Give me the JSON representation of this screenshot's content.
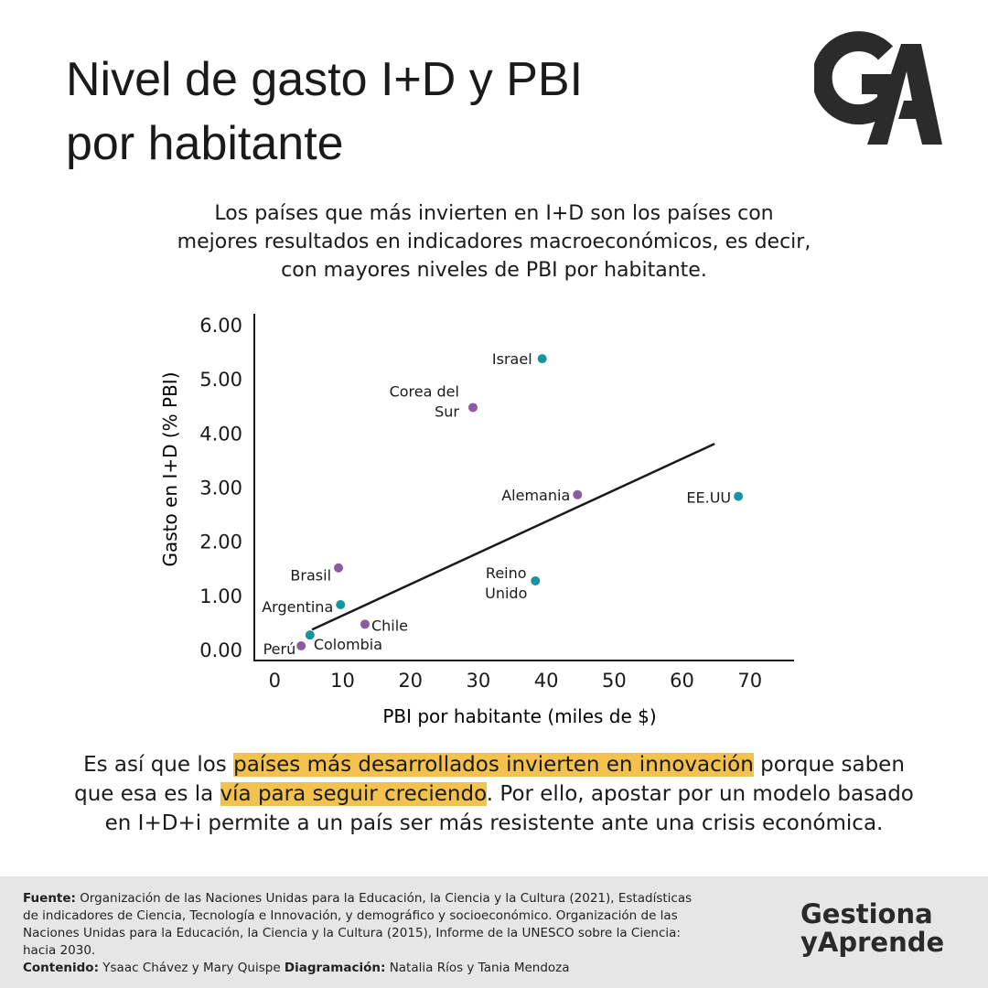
{
  "header": {
    "title_lines": [
      "Nivel de gasto I+D y PBI",
      "por habitante"
    ],
    "subtitle_lines": [
      "Los países que más invierten en I+D son los países con",
      "mejores resultados en indicadores macroeconómicos, es decir,",
      "con mayores niveles de PBI por habitante."
    ]
  },
  "chart_data": {
    "type": "scatter",
    "x_label": "PBI por habitante (miles de $)",
    "y_label": "Gasto en I+D (% PBI)",
    "xlim": [
      -3,
      76.5
    ],
    "ylim": [
      -0.2,
      6.2
    ],
    "xticks": [
      0,
      10,
      20,
      30,
      40,
      50,
      60,
      70
    ],
    "yticks": [
      {
        "value": 0,
        "label": "0.00"
      },
      {
        "value": 1,
        "label": "1.00"
      },
      {
        "value": 2,
        "label": "2.00"
      },
      {
        "value": 3,
        "label": "3.00"
      },
      {
        "value": 4,
        "label": "4.00"
      },
      {
        "value": 5,
        "label": "5.00"
      },
      {
        "value": 6,
        "label": "6.00"
      }
    ],
    "grid": false,
    "points": [
      {
        "label": [
          "Israel"
        ],
        "x": 39.4,
        "y": 5.37,
        "color": "#17959f"
      },
      {
        "label": [
          "Corea del",
          "Sur"
        ],
        "x": 29.2,
        "y": 4.47,
        "color": "#8a5c9e"
      },
      {
        "label": [
          "Alemania"
        ],
        "x": 44.6,
        "y": 2.86,
        "color": "#8a5c9e"
      },
      {
        "label": [
          "EE.UU"
        ],
        "x": 68.3,
        "y": 2.83,
        "color": "#17959f"
      },
      {
        "label": [
          "Reino",
          "Unido"
        ],
        "x": 38.4,
        "y": 1.27,
        "color": "#17959f"
      },
      {
        "label": [
          "Brasil"
        ],
        "x": 9.4,
        "y": 1.51,
        "color": "#8a5c9e"
      },
      {
        "label": [
          "Argentina"
        ],
        "x": 9.7,
        "y": 0.83,
        "color": "#17959f"
      },
      {
        "label": [
          "Chile"
        ],
        "x": 13.3,
        "y": 0.47,
        "color": "#8a5c9e"
      },
      {
        "label": [
          "Colombia"
        ],
        "x": 5.2,
        "y": 0.27,
        "color": "#17959f"
      },
      {
        "label": [
          "Perú"
        ],
        "x": 3.9,
        "y": 0.07,
        "color": "#8a5c9e"
      }
    ],
    "trendline": {
      "x": [
        5.5,
        64.8
      ],
      "y": [
        0.37,
        3.8
      ],
      "color": "#1a1a1a"
    }
  },
  "conclusion": {
    "highlight_color": "#f2c14e",
    "lines": [
      [
        {
          "text": "Es así que los ",
          "highlight": false
        },
        {
          "text": "países más desarrollados invierten en innovación",
          "highlight": true
        },
        {
          "text": " porque saben",
          "highlight": false
        }
      ],
      [
        {
          "text": "que esa es la ",
          "highlight": false
        },
        {
          "text": "vía para seguir creciendo",
          "highlight": true
        },
        {
          "text": ". Por ello, apostar por un modelo basado",
          "highlight": false
        }
      ],
      [
        {
          "text": "en I+D+i permite a un país ser más resistente ante una crisis económica.",
          "highlight": false
        }
      ]
    ]
  },
  "footer": {
    "source_label": "Fuente:",
    "source_text": "Organización de las Naciones Unidas para la Educación, la Ciencia y la Cultura (2021), Estadísticas de indicadores de Ciencia, Tecnología e Innovación, y demográfico y socioeconómico. Organización de las Naciones Unidas para la Educación, la Ciencia y la Cultura (2015), Informe de la UNESCO sobre la Ciencia: hacia 2030.",
    "content_label": "Contenido:",
    "content_text": "Ysaac Chávez y Mary Quispe",
    "design_label": "Diagramación:",
    "design_text": "Natalia Ríos y Tania Mendoza",
    "brand_lines": [
      "Gestiona",
      "yAprende"
    ]
  }
}
